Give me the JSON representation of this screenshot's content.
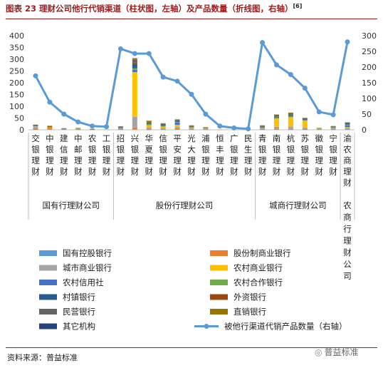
{
  "header": {
    "title": "图表 23 理财公司他行代销渠道（柱状图，左轴）及产品数量（折线图，右轴）",
    "note": "[6]"
  },
  "footer": {
    "source": "资料来源：普益标准",
    "watermark": "普益标准",
    "watermark_icon": "wechat-icon"
  },
  "chart_data": {
    "type": "bar",
    "combo": "stacked-bar + line",
    "categories": [
      "交银理财",
      "中银理财",
      "建信理财",
      "中邮理财",
      "农银理财",
      "工银理财",
      "招银理财",
      "兴银理财",
      "华夏理财",
      "信银理财",
      "平安理财",
      "光大理财",
      "浦银理财",
      "恒丰理财",
      "广银理财",
      "民生理财",
      "青银理财",
      "南银理财",
      "杭银理财",
      "苏银理财",
      "徽银理财",
      "宁银理财",
      "渝农商理财"
    ],
    "category_labels": [
      "交银理财",
      "中银理财",
      "建信理财",
      "中邮理财",
      "农银理财",
      "工银理财",
      "招银理财",
      "兴银理财",
      "华夏理财",
      "信银理财",
      "平安理财",
      "光大理财",
      "浦银理财",
      "恒丰理财",
      "广银理财",
      "民生理财",
      "青银理财",
      "南银理财",
      "杭银理财",
      "苏银理财",
      "徽银理财",
      "宁银理财",
      "渝农商理财"
    ],
    "groups": [
      {
        "label": "国有行理财公司",
        "start": 0,
        "end": 5
      },
      {
        "label": "股份行理财公司",
        "start": 6,
        "end": 15
      },
      {
        "label": "城商行理财公司",
        "start": 16,
        "end": 21
      },
      {
        "label": "农商行理财公司",
        "start": 22,
        "end": 22
      }
    ],
    "y_left": {
      "min": 0,
      "max": 400,
      "ticks": [
        0,
        50,
        100,
        150,
        200,
        250,
        300,
        350,
        400
      ]
    },
    "y_right": {
      "min": 0,
      "max": 300,
      "ticks": [
        0,
        50,
        100,
        150,
        200,
        250,
        300
      ]
    },
    "series": [
      {
        "name": "国有控股银行",
        "color": "#5b9bd5",
        "values": [
          3,
          2,
          1,
          1,
          1,
          0,
          1,
          2,
          1,
          1,
          2,
          1,
          1,
          0,
          0,
          0,
          1,
          2,
          1,
          1,
          1,
          1,
          1
        ]
      },
      {
        "name": "股份制商业银行",
        "color": "#ed7d31",
        "values": [
          5,
          4,
          2,
          2,
          1,
          1,
          2,
          8,
          4,
          3,
          5,
          3,
          2,
          1,
          0,
          0,
          2,
          3,
          3,
          2,
          1,
          2,
          2
        ]
      },
      {
        "name": "城市商业银行",
        "color": "#a5a5a5",
        "values": [
          4,
          3,
          1,
          1,
          0,
          0,
          3,
          45,
          6,
          5,
          6,
          4,
          2,
          0,
          0,
          0,
          3,
          8,
          10,
          6,
          1,
          3,
          4
        ]
      },
      {
        "name": "农村商业银行",
        "color": "#ffc000",
        "values": [
          3,
          2,
          0,
          1,
          0,
          0,
          2,
          190,
          9,
          5,
          8,
          3,
          2,
          0,
          0,
          0,
          3,
          35,
          40,
          30,
          2,
          3,
          4
        ]
      },
      {
        "name": "农村信用社",
        "color": "#4472c4",
        "values": [
          0,
          0,
          0,
          0,
          0,
          0,
          1,
          10,
          2,
          3,
          10,
          1,
          0,
          0,
          0,
          0,
          1,
          3,
          3,
          2,
          0,
          1,
          8
        ]
      },
      {
        "name": "农村合作银行",
        "color": "#70ad47",
        "values": [
          1,
          0,
          0,
          0,
          0,
          0,
          0,
          6,
          2,
          1,
          3,
          0,
          0,
          0,
          0,
          0,
          1,
          2,
          2,
          2,
          0,
          1,
          4
        ]
      },
      {
        "name": "村镇银行",
        "color": "#255e91",
        "values": [
          1,
          0,
          0,
          0,
          0,
          0,
          1,
          20,
          2,
          2,
          6,
          1,
          1,
          0,
          0,
          0,
          1,
          2,
          2,
          1,
          0,
          1,
          5
        ]
      },
      {
        "name": "外资银行",
        "color": "#9e480e",
        "values": [
          0,
          1,
          0,
          0,
          0,
          0,
          0,
          5,
          2,
          1,
          0,
          1,
          0,
          0,
          0,
          0,
          1,
          2,
          3,
          1,
          0,
          1,
          0
        ]
      },
      {
        "name": "民营银行",
        "color": "#636363",
        "values": [
          3,
          3,
          2,
          2,
          1,
          0,
          3,
          12,
          5,
          4,
          2,
          3,
          2,
          0,
          0,
          0,
          4,
          5,
          6,
          4,
          2,
          2,
          3
        ]
      },
      {
        "name": "直销银行",
        "color": "#997300",
        "values": [
          2,
          2,
          1,
          1,
          1,
          0,
          2,
          4,
          4,
          3,
          1,
          2,
          1,
          0,
          0,
          0,
          2,
          3,
          3,
          2,
          1,
          1,
          1
        ]
      },
      {
        "name": "其它机构",
        "color": "#264478",
        "values": [
          0,
          0,
          0,
          0,
          0,
          0,
          0,
          2,
          1,
          0,
          1,
          0,
          0,
          0,
          0,
          0,
          0,
          0,
          0,
          0,
          0,
          0,
          0
        ]
      },
      {
        "name": "被他行渠道代销产品数量（右轴）",
        "color": "#5b9bd5",
        "axis": "right",
        "type": "line",
        "values": [
          172,
          88,
          50,
          25,
          12,
          10,
          258,
          243,
          243,
          168,
          155,
          113,
          50,
          12,
          6,
          3,
          278,
          207,
          176,
          133,
          57,
          48,
          280
        ]
      }
    ],
    "legend_position": "bottom",
    "grid": false
  }
}
